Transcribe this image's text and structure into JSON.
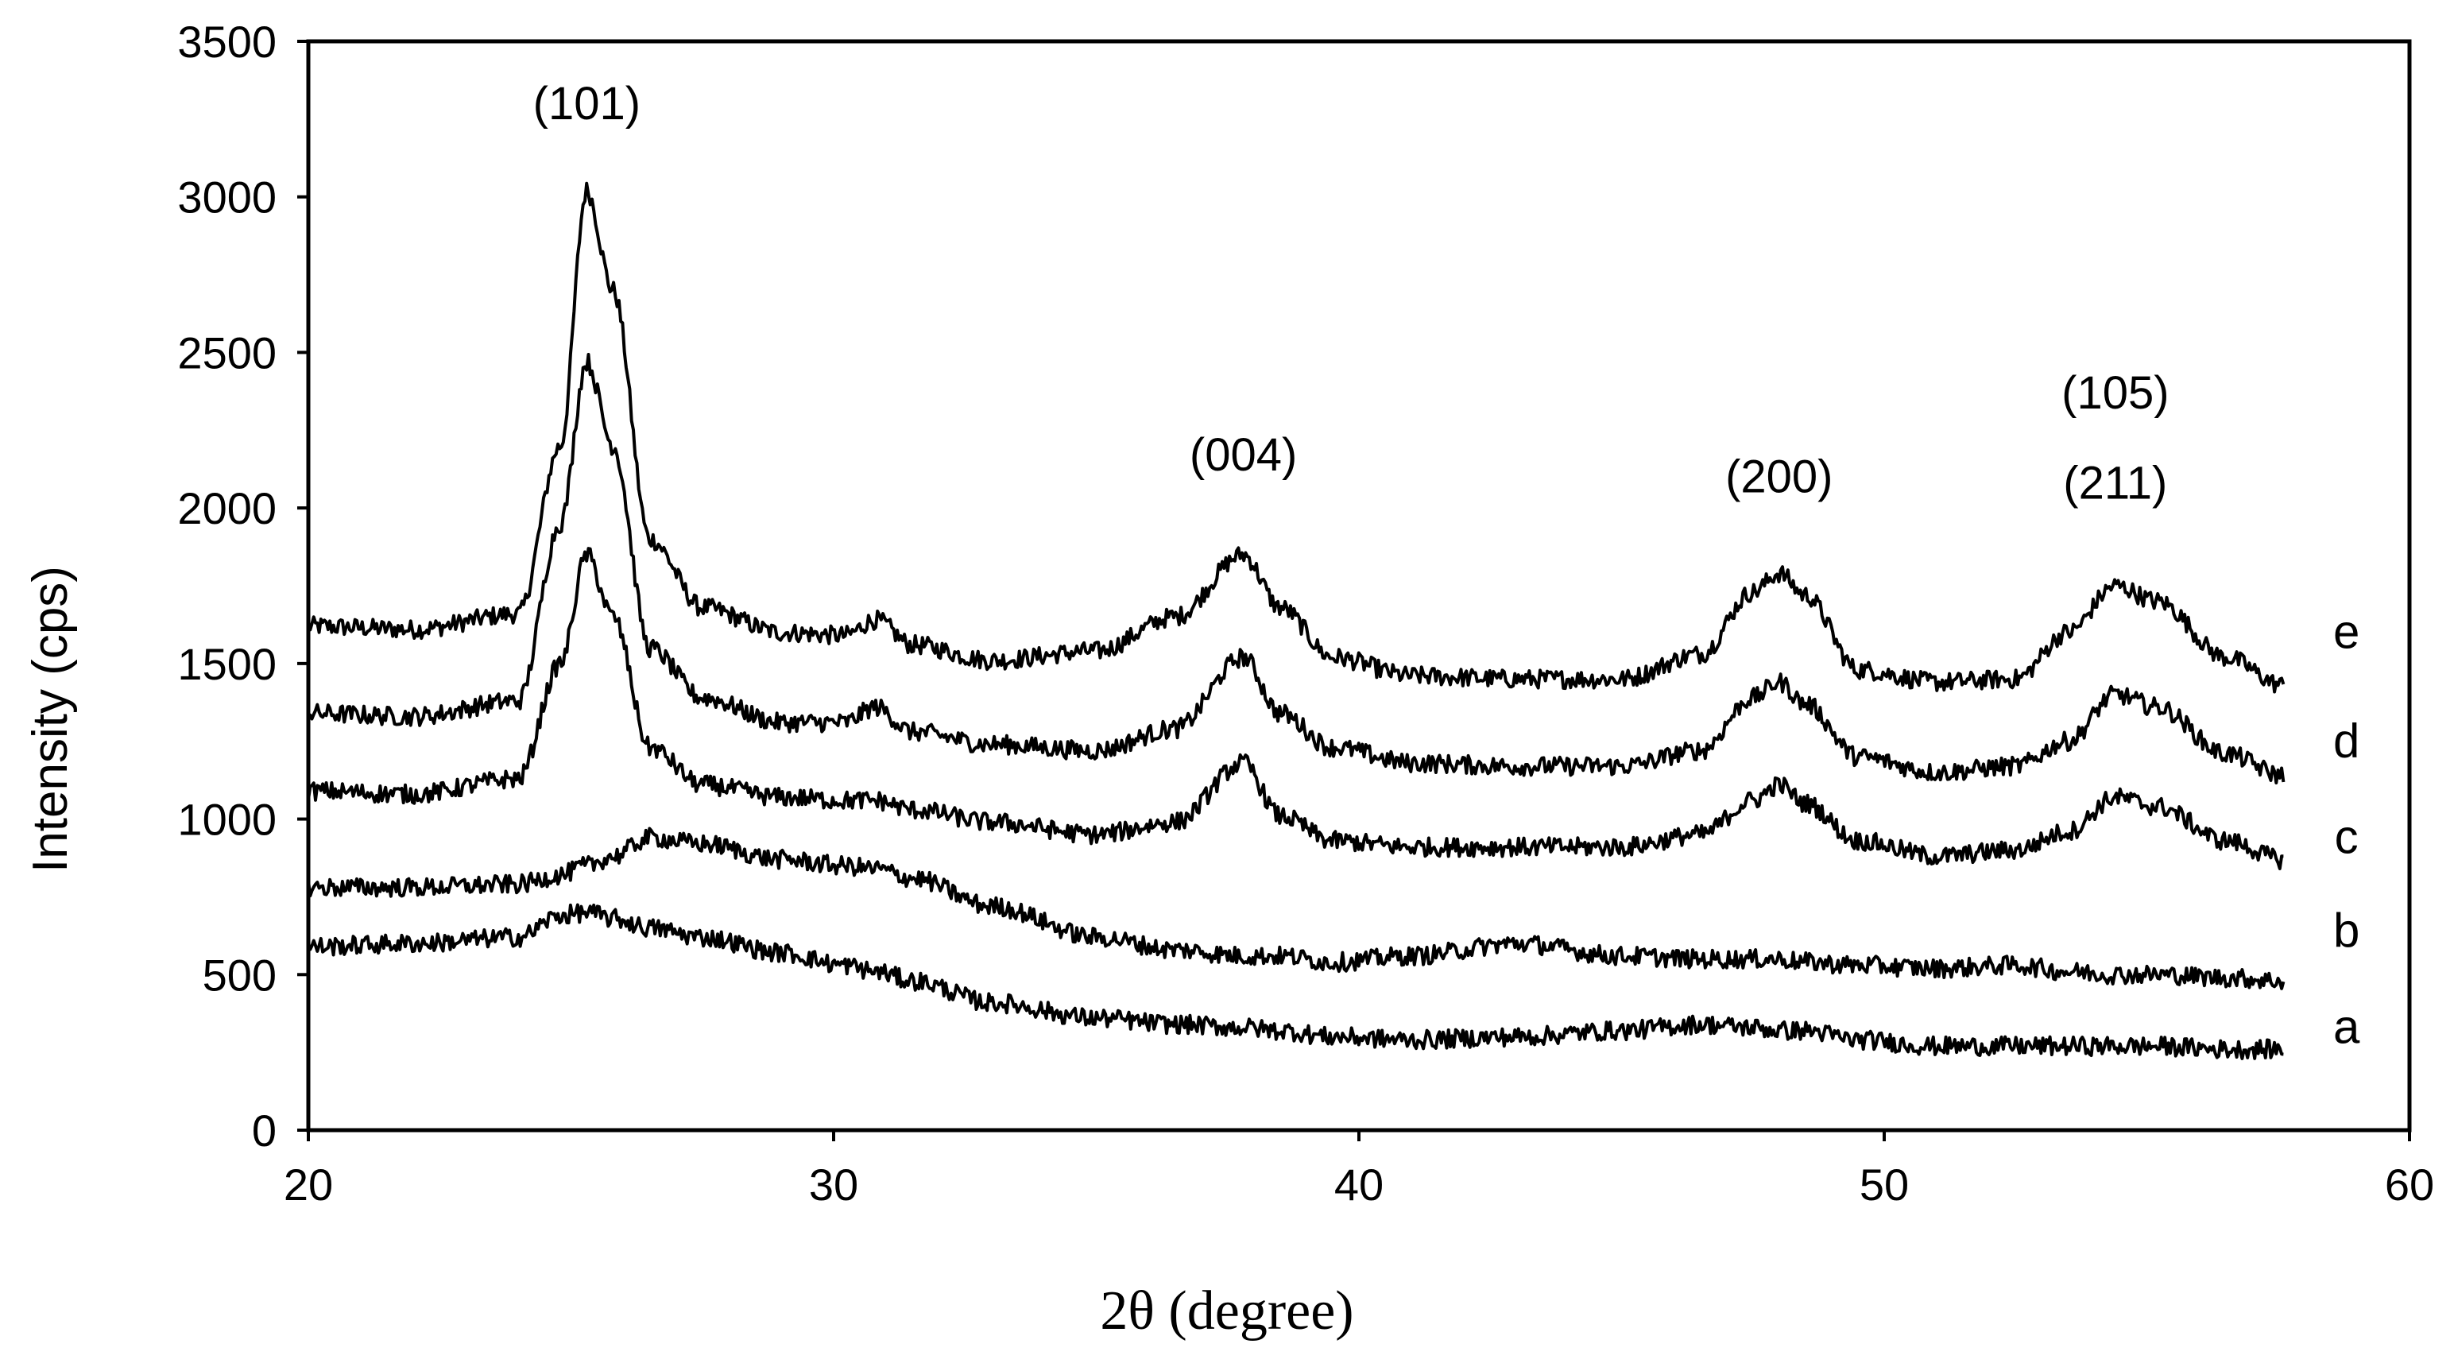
{
  "chart_data": {
    "type": "line",
    "title": "",
    "xlabel": "2θ (degree)",
    "ylabel": "Intensity (cps)",
    "xlim": [
      20,
      60
    ],
    "ylim": [
      0,
      3500
    ],
    "xticks": [
      20,
      30,
      40,
      50,
      60
    ],
    "yticks": [
      0,
      500,
      1000,
      1500,
      2000,
      2500,
      3000,
      3500
    ],
    "grid": false,
    "legend": "none",
    "annotations": [
      {
        "text": "(101)",
        "x": 25.3,
        "y": 3250
      },
      {
        "text": "(004)",
        "x": 37.8,
        "y": 2120
      },
      {
        "text": "(200)",
        "x": 48.0,
        "y": 2050
      },
      {
        "text": "(105)",
        "x": 54.4,
        "y": 2320
      },
      {
        "text": "(211)",
        "x": 54.4,
        "y": 2030
      }
    ],
    "series_labels": [
      {
        "text": "e",
        "x": 58.8,
        "y": 1550
      },
      {
        "text": "d",
        "x": 58.8,
        "y": 1200
      },
      {
        "text": "c",
        "x": 58.8,
        "y": 890
      },
      {
        "text": "b",
        "x": 58.8,
        "y": 590
      },
      {
        "text": "a",
        "x": 58.8,
        "y": 280
      }
    ],
    "x": [
      20,
      22,
      24,
      24.8,
      25.3,
      25.8,
      26.5,
      27.5,
      29,
      30.2,
      30.8,
      31.5,
      33,
      35,
      36.5,
      37.8,
      38.5,
      39.5,
      41,
      43,
      45,
      46.5,
      47.5,
      48,
      48.5,
      49.5,
      51,
      52.5,
      53.5,
      54.4,
      55.2,
      56.5,
      57.6
    ],
    "series": [
      {
        "name": "e",
        "values": [
          1620,
          1610,
          1660,
          2200,
          3020,
          2700,
          1900,
          1680,
          1600,
          1590,
          1640,
          1560,
          1510,
          1540,
          1650,
          1850,
          1680,
          1520,
          1460,
          1450,
          1450,
          1530,
          1730,
          1790,
          1720,
          1480,
          1440,
          1450,
          1600,
          1750,
          1700,
          1520,
          1430
        ]
      },
      {
        "name": "d",
        "values": [
          1340,
          1330,
          1380,
          1950,
          2470,
          2200,
          1550,
          1390,
          1310,
          1310,
          1360,
          1280,
          1240,
          1220,
          1290,
          1520,
          1340,
          1230,
          1180,
          1170,
          1170,
          1220,
          1390,
          1440,
          1370,
          1200,
          1150,
          1170,
          1250,
          1400,
          1360,
          1210,
          1140
        ]
      },
      {
        "name": "c",
        "values": [
          1090,
          1080,
          1130,
          1500,
          1850,
          1650,
          1230,
          1110,
          1070,
          1060,
          1060,
          1030,
          990,
          950,
          990,
          1180,
          1010,
          930,
          910,
          910,
          910,
          950,
          1060,
          1110,
          1050,
          930,
          880,
          900,
          960,
          1070,
          1040,
          930,
          870
        ]
      },
      {
        "name": "b",
        "values": [
          780,
          780,
          790,
          820,
          850,
          880,
          940,
          920,
          870,
          850,
          840,
          810,
          720,
          620,
          580,
          560,
          560,
          540,
          560,
          600,
          560,
          550,
          550,
          550,
          540,
          530,
          520,
          530,
          510,
          500,
          500,
          490,
          480
        ]
      },
      {
        "name": "a",
        "values": [
          590,
          600,
          620,
          690,
          700,
          680,
          650,
          620,
          570,
          530,
          510,
          480,
          410,
          360,
          340,
          330,
          320,
          300,
          290,
          300,
          320,
          340,
          330,
          320,
          320,
          290,
          270,
          270,
          270,
          270,
          270,
          260,
          260
        ]
      }
    ]
  }
}
